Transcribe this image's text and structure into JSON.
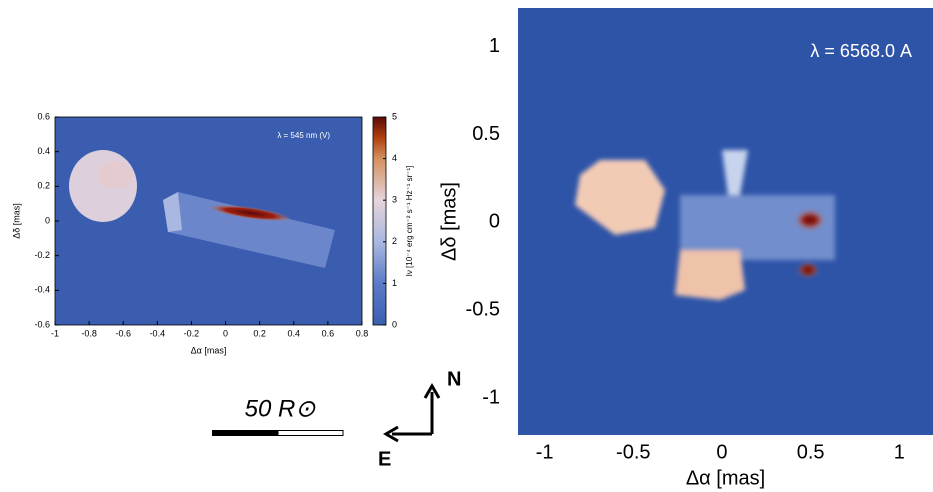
{
  "chart_data": [
    {
      "type": "image",
      "annotation": "λ = 545 nm (V)",
      "x_label": "Δα [mas]",
      "y_label": "Δδ [mas]",
      "xlim": [
        -1,
        0.8
      ],
      "xticks": [
        -1,
        -0.8,
        -0.6,
        -0.4,
        -0.2,
        0,
        0.2,
        0.4,
        0.6,
        0.8
      ],
      "ylim": [
        -0.6,
        0.6
      ],
      "yticks": [
        -0.6,
        -0.4,
        -0.2,
        0,
        0.2,
        0.4,
        0.6
      ],
      "colorbar": {
        "lim": [
          0,
          5
        ],
        "ticks": [
          0,
          1,
          2,
          3,
          4,
          5
        ],
        "label": "Iν [10⁻⁴ erg cm⁻² s⁻¹ Hz⁻¹ sr⁻¹]"
      }
    },
    {
      "type": "image",
      "annotation": "λ = 6568.0 A",
      "x_label": "Δα [mas]",
      "y_label": "Δδ [mas]",
      "xlim": [
        -1.15,
        1.19
      ],
      "xticks": [
        -1,
        -0.5,
        0,
        0.5,
        1
      ],
      "ylim": [
        -1.21,
        1.22
      ],
      "yticks": [
        -1,
        -0.5,
        0,
        0.5,
        1
      ]
    }
  ],
  "scale_bar": {
    "label": "50 R⊙"
  },
  "compass": {
    "north": "N",
    "east": "E"
  }
}
